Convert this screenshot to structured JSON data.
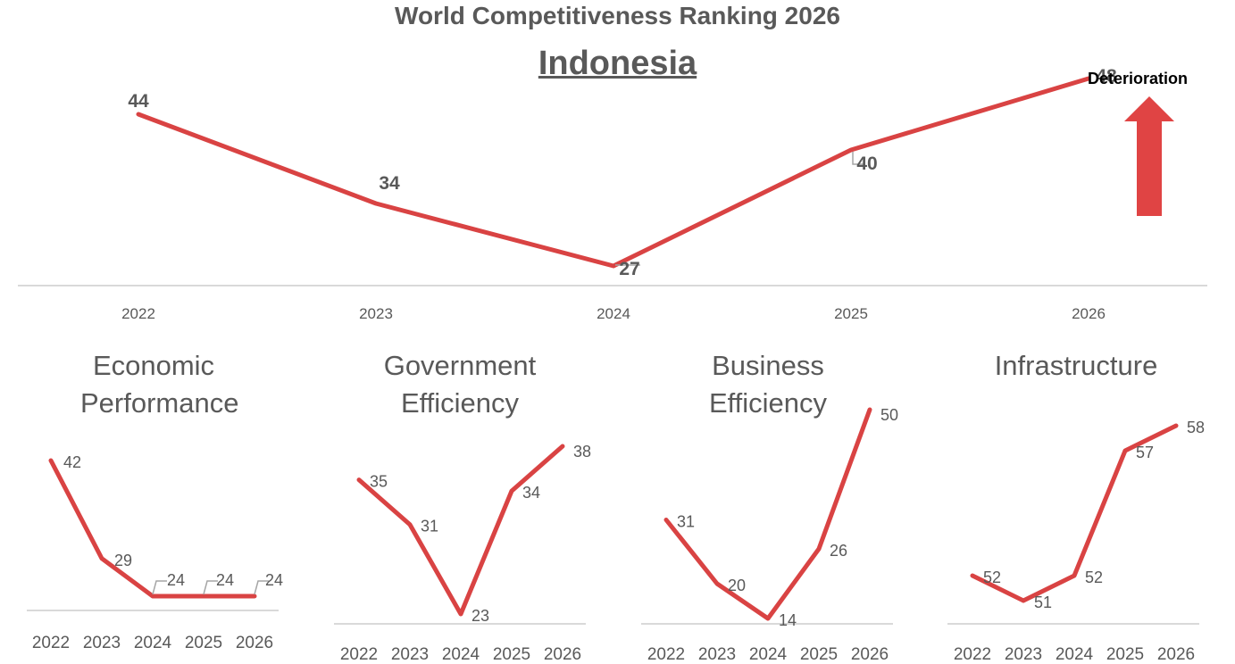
{
  "colors": {
    "line": "#D94343",
    "arrow": "#E04444",
    "text": "#595959",
    "axis": "#D9D9D9",
    "leader": "#A6A6A6"
  },
  "title": "World Competitiveness Ranking 2026",
  "country": "Indonesia",
  "indicator": {
    "label": "Deterioration",
    "icon": "up-arrow-icon"
  },
  "chart_data": [
    {
      "type": "line",
      "title": "World Competitiveness Ranking 2026",
      "subtitle": "Indonesia",
      "x": [
        "2022",
        "2023",
        "2024",
        "2025",
        "2026"
      ],
      "values": [
        44,
        34,
        27,
        40,
        48
      ],
      "data_labels": [
        "44",
        "34",
        "27",
        "40",
        "48"
      ]
    },
    {
      "type": "line",
      "title": "Economic Performance",
      "x": [
        "2022",
        "2023",
        "2024",
        "2025",
        "2026"
      ],
      "values": [
        42,
        29,
        24,
        24,
        24
      ],
      "data_labels": [
        "42",
        "29",
        "24",
        "24",
        "24"
      ]
    },
    {
      "type": "line",
      "title": "Government Efficiency",
      "x": [
        "2022",
        "2023",
        "2024",
        "2025",
        "2026"
      ],
      "values": [
        35,
        31,
        23,
        34,
        38
      ],
      "data_labels": [
        "35",
        "31",
        "23",
        "34",
        "38"
      ]
    },
    {
      "type": "line",
      "title": "Business Efficiency",
      "x": [
        "2022",
        "2023",
        "2024",
        "2025",
        "2026"
      ],
      "values": [
        31,
        20,
        14,
        26,
        50
      ],
      "data_labels": [
        "31",
        "20",
        "14",
        "26",
        "50"
      ]
    },
    {
      "type": "line",
      "title": "Infrastructure",
      "x": [
        "2022",
        "2023",
        "2024",
        "2025",
        "2026"
      ],
      "values": [
        52,
        51,
        52,
        57,
        58
      ],
      "data_labels": [
        "52",
        "51",
        "52",
        "57",
        "58"
      ]
    }
  ]
}
